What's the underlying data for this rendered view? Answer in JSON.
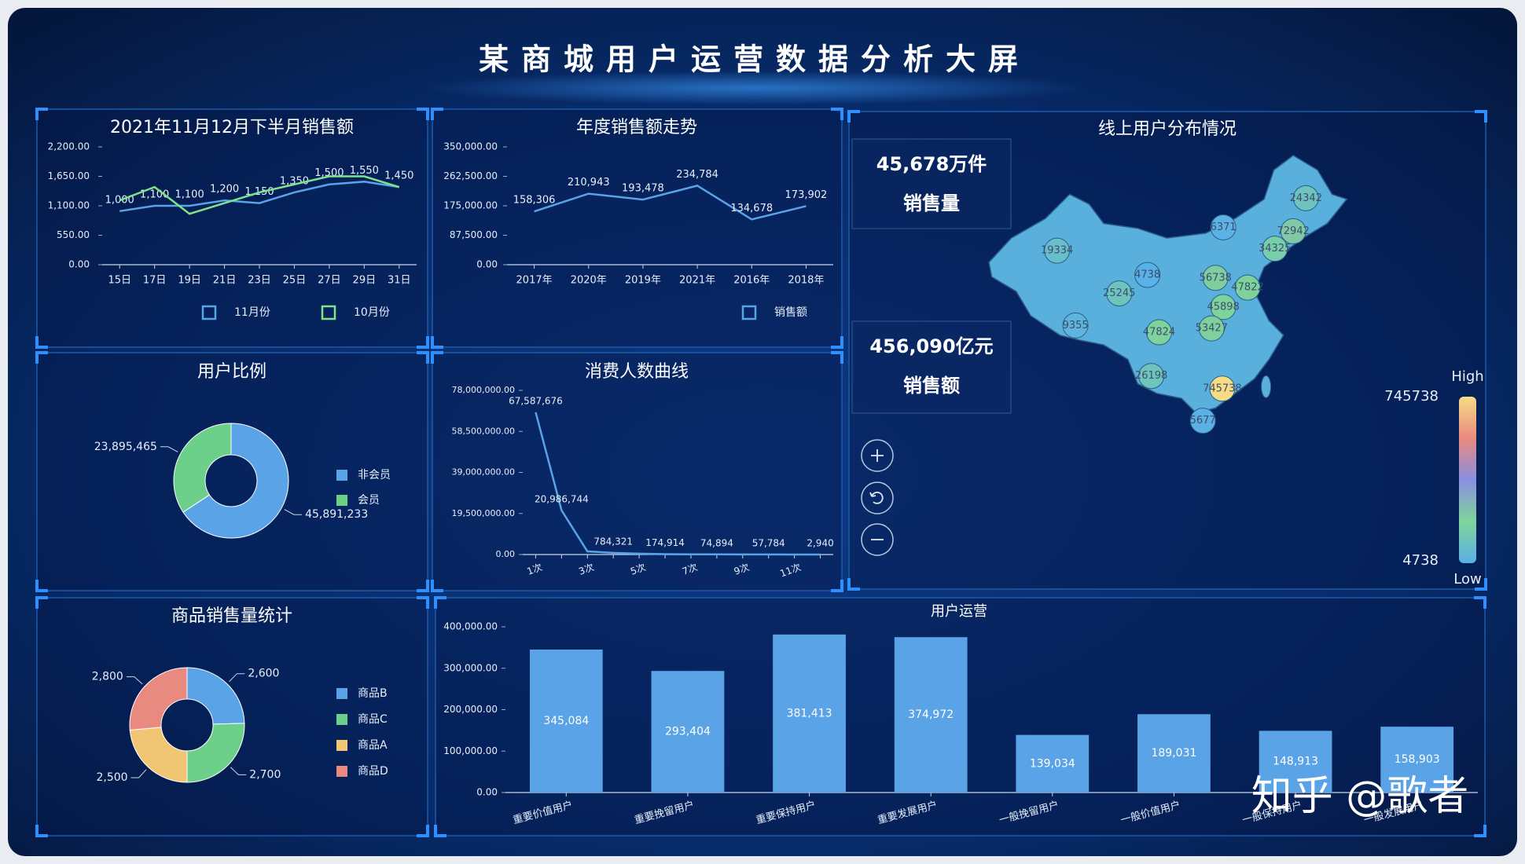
{
  "title": "某商城用户运营数据分析大屏",
  "chart_data": [
    {
      "type": "line",
      "title": "2021年11月12月下半月销售额",
      "categories": [
        "15日",
        "17日",
        "19日",
        "21日",
        "23日",
        "25日",
        "27日",
        "29日",
        "31日"
      ],
      "series": [
        {
          "name": "11月份",
          "color": "#5aa3e6",
          "values": [
            1000,
            1100,
            1100,
            1200,
            1150,
            1350,
            1500,
            1550,
            1450
          ],
          "value_labels": [
            "1,000",
            "1,100",
            "1,100",
            "1,200",
            "1,150",
            "1,350",
            "1,500",
            "1,550",
            "1,450"
          ]
        },
        {
          "name": "10月份",
          "color": "#7ee38c",
          "values": [
            1200,
            1450,
            950,
            1150,
            1350,
            1500,
            1650,
            1650,
            1450
          ]
        }
      ],
      "ylim": [
        0,
        2200
      ],
      "yticks": [
        {
          "value": 0,
          "label": "0.00"
        },
        {
          "value": 550,
          "label": "550.00"
        },
        {
          "value": 1100,
          "label": "1,100.00"
        },
        {
          "value": 1650,
          "label": "1,650.00"
        },
        {
          "value": 2200,
          "label": "2,200.00"
        }
      ]
    },
    {
      "type": "line",
      "title": "年度销售额走势",
      "categories": [
        "2017年",
        "2020年",
        "2019年",
        "2021年",
        "2016年",
        "2018年"
      ],
      "series": [
        {
          "name": "销售额",
          "color": "#5aa3e6",
          "values": [
            158306,
            210943,
            193478,
            234784,
            134678,
            173902
          ],
          "value_labels": [
            "158,306",
            "210,943",
            "193,478",
            "234,784",
            "134,678",
            "173,902"
          ]
        }
      ],
      "ylim": [
        0,
        350000
      ],
      "yticks": [
        {
          "value": 0,
          "label": "0.00"
        },
        {
          "value": 87500,
          "label": "87,500.00"
        },
        {
          "value": 175000,
          "label": "175,000.00"
        },
        {
          "value": 262500,
          "label": "262,500.00"
        },
        {
          "value": 350000,
          "label": "350,000.00"
        }
      ]
    },
    {
      "type": "pie",
      "title": "用户比例",
      "categories": [
        "非会员",
        "会员"
      ],
      "values": [
        45891233,
        23895465
      ],
      "value_labels": [
        "45,891,233",
        "23,895,465"
      ],
      "colors": [
        "#5aa3e6",
        "#6dd08a"
      ]
    },
    {
      "type": "line",
      "title": "消费人数曲线",
      "categories": [
        "1次",
        null,
        "3次",
        null,
        "5次",
        null,
        "7次",
        null,
        "9次",
        null,
        "11次",
        null
      ],
      "series": [
        {
          "color": "#5aa3e6",
          "values": [
            67587676,
            20986744,
            1500000,
            784321,
            400000,
            174914,
            100000,
            74894,
            60000,
            57784,
            20000,
            2940
          ],
          "value_labels": [
            "67,587,676",
            "20,986,744",
            null,
            "784,321",
            null,
            "174,914",
            null,
            "74,894",
            null,
            "57,784",
            null,
            "2,940"
          ]
        }
      ],
      "ylim": [
        0,
        78000000
      ],
      "yticks": [
        {
          "value": 0,
          "label": "0.00"
        },
        {
          "value": 19500000,
          "label": "19,500,000.00"
        },
        {
          "value": 39000000,
          "label": "39,000,000.00"
        },
        {
          "value": 58500000,
          "label": "58,500,000.00"
        },
        {
          "value": 78000000,
          "label": "78,000,000.00"
        }
      ]
    },
    {
      "type": "pie",
      "title": "商品销售量统计",
      "categories": [
        "商品B",
        "商品C",
        "商品A",
        "商品D"
      ],
      "values": [
        2600,
        2700,
        2500,
        2800
      ],
      "value_labels": [
        "2,600",
        "2,700",
        "2,500",
        "2,800"
      ],
      "colors": [
        "#5aa3e6",
        "#6dd08a",
        "#f0c574",
        "#e98a80"
      ]
    },
    {
      "type": "bar",
      "title": "用户运营",
      "categories": [
        "重要价值用户",
        "重要挽留用户",
        "重要保持用户",
        "重要发展用户",
        "一般挽留用户",
        "一般价值用户",
        "一般保持用户",
        "一般发展用户"
      ],
      "values": [
        345084,
        293404,
        381413,
        374972,
        139034,
        189031,
        148913,
        158903
      ],
      "value_labels": [
        "345,084",
        "293,404",
        "381,413",
        "374,972",
        "139,034",
        "189,031",
        "148,913",
        "158,903"
      ],
      "color": "#5aa3e6",
      "ylim": [
        0,
        400000
      ],
      "yticks": [
        {
          "value": 0,
          "label": "0.00"
        },
        {
          "value": 100000,
          "label": "100,000.00"
        },
        {
          "value": 200000,
          "label": "200,000.00"
        },
        {
          "value": 300000,
          "label": "300,000.00"
        },
        {
          "value": 400000,
          "label": "400,000.00"
        }
      ]
    }
  ],
  "map": {
    "title": "线上用户分布情况",
    "kpis": [
      {
        "value": "45,678万件",
        "label": "销售量"
      },
      {
        "value": "456,090亿元",
        "label": "销售额"
      }
    ],
    "values": [
      19334,
      9355,
      25245,
      4738,
      24342,
      72942,
      6371,
      47824,
      26198,
      745738,
      5677,
      34325,
      47822,
      45898,
      53427,
      56738
    ],
    "range": [
      4738,
      745738
    ],
    "high_label": "High",
    "low_label": "Low"
  },
  "watermark": "知乎 @歌者"
}
